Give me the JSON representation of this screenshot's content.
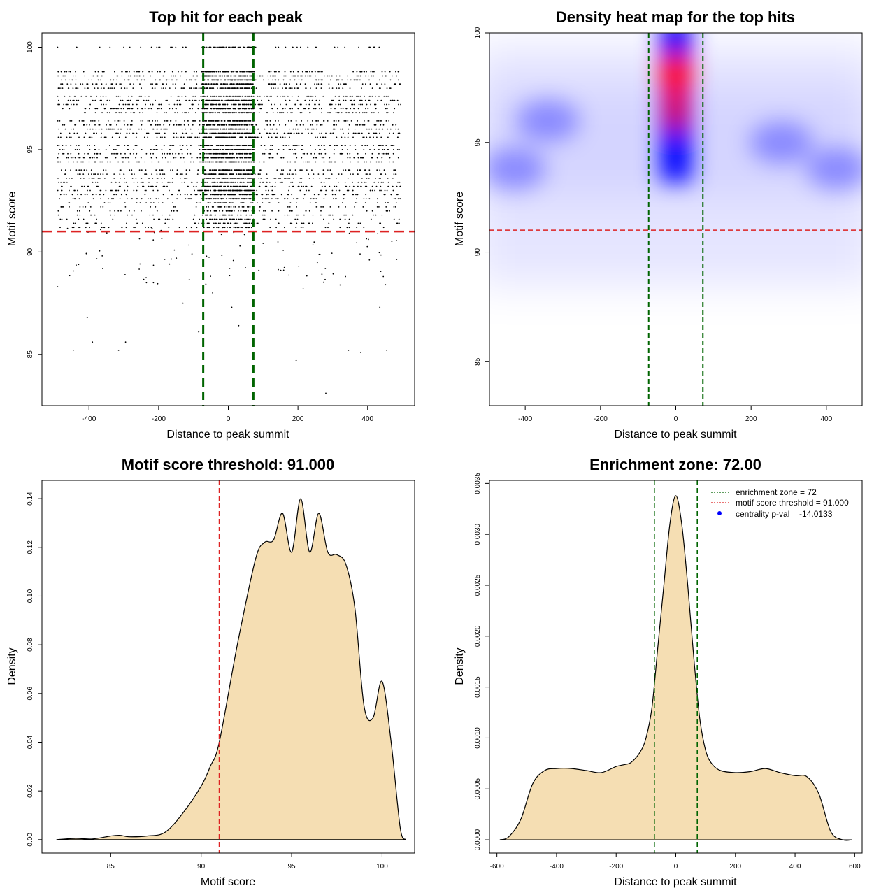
{
  "colors": {
    "zone_line": "#006400",
    "threshold_line": "#dd2222",
    "density_fill": "#f5deb3",
    "heat_low": "#ffffff",
    "heat_mid": "#0000ff",
    "heat_high": "#ff0000",
    "points": "#000000",
    "legend_point": "#0000ff"
  },
  "chart_data": [
    {
      "type": "scatter",
      "title": "Top hit for each peak",
      "xlabel": "Distance to peak summit",
      "ylabel": "Motif score",
      "xlim": [
        -535,
        535
      ],
      "ylim": [
        82.5,
        100.7
      ],
      "xticks": [
        -400,
        -200,
        0,
        200,
        400
      ],
      "yticks": [
        85,
        90,
        95,
        100
      ],
      "vlines": [
        -72,
        72
      ],
      "hline": 91,
      "x_range": [
        -490,
        495
      ],
      "score_levels": [
        100,
        98.8,
        98.6,
        98.4,
        98.2,
        98.0,
        97.6,
        97.4,
        97.2,
        97.0,
        96.8,
        96.4,
        96.2,
        96.0,
        95.8,
        95.6,
        95.2,
        95.0,
        94.8,
        94.6,
        94.4,
        94.0,
        93.8,
        93.6,
        93.4,
        93.2,
        93.0,
        92.8,
        92.6,
        92.4,
        92.2,
        92.0,
        91.8,
        91.6,
        91.4,
        91.2
      ],
      "low_points": [
        {
          "x": 280,
          "y": 83.1
        },
        {
          "x": -445,
          "y": 85.2
        },
        {
          "x": -315,
          "y": 85.2
        },
        {
          "x": 345,
          "y": 85.2
        },
        {
          "x": 380,
          "y": 85.1
        },
        {
          "x": 455,
          "y": 85.2
        },
        {
          "x": 195,
          "y": 84.7
        },
        {
          "x": -405,
          "y": 86.8
        },
        {
          "x": 435,
          "y": 87.3
        },
        {
          "x": 10,
          "y": 87.3
        },
        {
          "x": -85,
          "y": 86.1
        },
        {
          "x": -45,
          "y": 88.0
        },
        {
          "x": -390,
          "y": 85.6
        },
        {
          "x": -295,
          "y": 85.6
        },
        {
          "x": -490,
          "y": 88.3
        },
        {
          "x": 30,
          "y": 86.4
        },
        {
          "x": -130,
          "y": 87.5
        },
        {
          "x": 215,
          "y": 88.2
        },
        {
          "x": 445,
          "y": 88.8
        },
        {
          "x": -235,
          "y": 88.5
        }
      ]
    },
    {
      "type": "heatmap",
      "title": "Density heat map for the top hits",
      "xlabel": "Distance to peak summit",
      "ylabel": "Motif score",
      "xlim": [
        -495,
        495
      ],
      "ylim": [
        83,
        100
      ],
      "xticks": [
        -400,
        -200,
        0,
        200,
        400
      ],
      "yticks": [
        85,
        90,
        95,
        100
      ],
      "vlines": [
        -72,
        72
      ],
      "hline": 91,
      "hotspots": [
        {
          "x": 0,
          "y": 98.2,
          "level": 1.0
        },
        {
          "x": 0,
          "y": 97.0,
          "level": 0.8
        },
        {
          "x": 0,
          "y": 96.2,
          "level": 0.75
        },
        {
          "x": 0,
          "y": 94.5,
          "level": 0.65
        },
        {
          "x": 0,
          "y": 99.5,
          "level": 0.6
        },
        {
          "x": -340,
          "y": 96.0,
          "level": 0.25
        },
        {
          "x": 280,
          "y": 95.0,
          "level": 0.25
        },
        {
          "x": -430,
          "y": 93.8,
          "level": 0.2
        },
        {
          "x": 430,
          "y": 93.8,
          "level": 0.2
        }
      ]
    },
    {
      "type": "area",
      "title": "Motif score threshold: 91.000",
      "xlabel": "Motif score",
      "ylabel": "Density",
      "xlim": [
        81.2,
        101.8
      ],
      "ylim": [
        -0.0055,
        0.1475
      ],
      "xticks": [
        85,
        90,
        95,
        100
      ],
      "yticks": [
        0,
        0.02,
        0.04,
        0.06,
        0.08,
        0.1,
        0.12,
        0.14
      ],
      "ytick_labels": [
        "0.00",
        "0.02",
        "0.04",
        "0.06",
        "0.08",
        "0.10",
        "0.12",
        "0.14"
      ],
      "vline": 91,
      "x": [
        82.0,
        83.0,
        84.0,
        85.0,
        85.5,
        86.0,
        87.0,
        88.0,
        89.0,
        90.0,
        90.5,
        91.0,
        92.0,
        93.0,
        93.5,
        94.0,
        94.5,
        95.0,
        95.5,
        96.0,
        96.5,
        97.0,
        97.5,
        98.0,
        98.5,
        99.0,
        99.5,
        100.0,
        100.5,
        101.0,
        101.3
      ],
      "y": [
        0.0,
        0.0005,
        0.0003,
        0.0015,
        0.0018,
        0.0012,
        0.0015,
        0.003,
        0.011,
        0.022,
        0.03,
        0.04,
        0.08,
        0.115,
        0.122,
        0.123,
        0.134,
        0.118,
        0.14,
        0.118,
        0.134,
        0.118,
        0.117,
        0.113,
        0.095,
        0.055,
        0.05,
        0.065,
        0.04,
        0.005,
        0.0
      ]
    },
    {
      "type": "area",
      "title": "Enrichment zone: 72.00",
      "xlabel": "Distance to peak summit",
      "ylabel": "Density",
      "xlim": [
        -625,
        625
      ],
      "ylim": [
        -0.00013,
        0.00353
      ],
      "xticks": [
        -600,
        -400,
        -200,
        0,
        200,
        400,
        600
      ],
      "yticks": [
        0,
        0.0005,
        0.001,
        0.0015,
        0.002,
        0.0025,
        0.003,
        0.0035
      ],
      "ytick_labels": [
        "0.0000",
        "0.0005",
        "0.0010",
        "0.0015",
        "0.0020",
        "0.0025",
        "0.0030",
        "0.0035"
      ],
      "vlines": [
        -72,
        72
      ],
      "x": [
        -590,
        -560,
        -520,
        -480,
        -440,
        -400,
        -350,
        -300,
        -250,
        -200,
        -170,
        -150,
        -120,
        -100,
        -80,
        -60,
        -40,
        -20,
        0,
        20,
        40,
        60,
        80,
        100,
        120,
        150,
        200,
        250,
        300,
        350,
        400,
        440,
        480,
        520,
        560,
        590
      ],
      "y": [
        0.0,
        3e-05,
        0.0002,
        0.00055,
        0.00068,
        0.0007,
        0.0007,
        0.00068,
        0.00066,
        0.00072,
        0.00074,
        0.00076,
        0.00086,
        0.001,
        0.0013,
        0.0019,
        0.0025,
        0.0031,
        0.00338,
        0.0031,
        0.0025,
        0.0018,
        0.0012,
        0.00088,
        0.00075,
        0.00068,
        0.00066,
        0.00067,
        0.0007,
        0.00066,
        0.00063,
        0.00062,
        0.00045,
        8e-05,
        0.0,
        0.0
      ]
    }
  ],
  "legend": [
    {
      "label": "enrichment zone = 72",
      "color": "#006400",
      "kind": "line"
    },
    {
      "label": "motif score threshold = 91.000",
      "color": "#dd2222",
      "kind": "line"
    },
    {
      "label": "centrality p-val = -14.0133",
      "color": "#0000ff",
      "kind": "point"
    }
  ]
}
